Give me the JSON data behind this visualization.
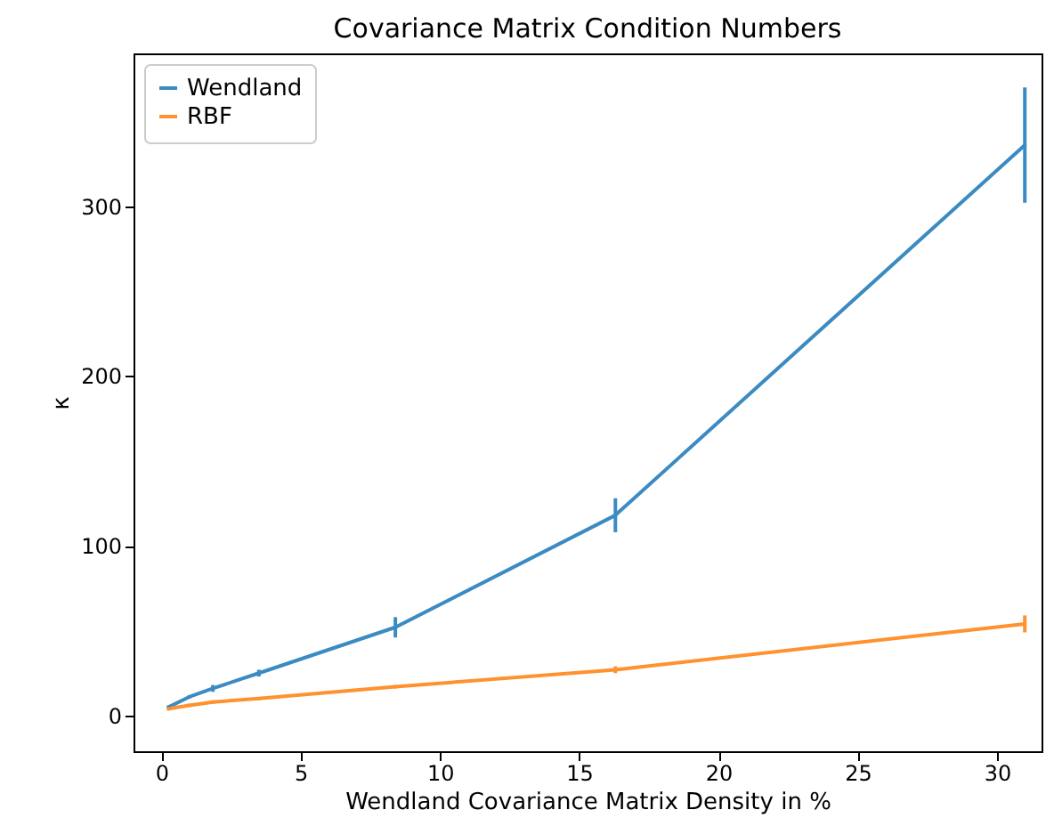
{
  "chart_data": {
    "type": "line",
    "title": "Covariance Matrix Condition Numbers",
    "xlabel": "Wendland Covariance Matrix Density in %",
    "ylabel": "κ",
    "x": [
      0.26,
      1.0,
      1.85,
      3.5,
      8.4,
      16.3,
      31.0
    ],
    "series": [
      {
        "name": "Wendland",
        "color": "#3b8bc2",
        "values": [
          5,
          11,
          16,
          25,
          52,
          118,
          336
        ],
        "errors": [
          1,
          1,
          2,
          2,
          6,
          10,
          34
        ]
      },
      {
        "name": "RBF",
        "color": "#ff922e",
        "values": [
          4,
          6,
          8,
          10,
          17,
          27,
          54
        ],
        "errors": [
          1,
          1,
          1,
          1,
          1,
          2,
          5
        ]
      }
    ],
    "xlim": [
      -1.0,
      31.6
    ],
    "ylim": [
      -21,
      390
    ],
    "xticks": [
      0,
      5,
      10,
      15,
      20,
      25,
      30
    ],
    "yticks": [
      0,
      100,
      200,
      300
    ],
    "grid": false,
    "legend": "top left",
    "marker": "none",
    "line_style": "solid"
  }
}
